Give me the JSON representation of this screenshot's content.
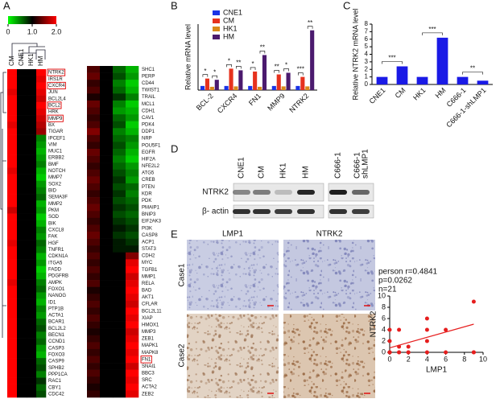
{
  "panel_labels": [
    "A",
    "B",
    "C",
    "D",
    "E"
  ],
  "chart_data": [
    {
      "type": "heatmap",
      "scale": {
        "lim": [
          0,
          2
        ],
        "ticks": [
          0,
          {
            "value": 1,
            "label": "1.0"
          },
          {
            "value": 2,
            "label": "2.0"
          }
        ]
      },
      "columns": [
        "CM",
        "CNE1",
        "HK1",
        "HM"
      ],
      "left_genes": [
        {
          "label": "NTRK2",
          "boxed": true
        },
        "IRS1R",
        {
          "label": "CXCR4",
          "boxed": true
        },
        "JUN",
        "BCL2L4",
        {
          "label": "BCL2",
          "boxed": true
        },
        "HRK",
        {
          "label": "MMP9",
          "boxed": true
        },
        "BX",
        "TIGAR",
        "IPCEF1",
        "VIM",
        "MUC1",
        "ERBB2",
        "BMF",
        "NOTCH",
        "MMP7",
        "SOX2",
        "BID",
        "SEMA3F",
        "MMP2",
        "PKM",
        "SOD",
        "BIK",
        "CXCL8",
        "FAK",
        "HGF",
        "TNFR1",
        "CDKN1A",
        "ITGA5",
        "FADD",
        "PDGFRB",
        "AMPK",
        "FOXO1",
        "NANOG",
        "ID1",
        "PTP1B",
        "ACTA1",
        "BCAR1",
        "BCL2L2",
        "BECN1",
        "CCND1",
        "CASP3",
        "FOXO3",
        "CASP9",
        "SPHB2",
        "PPP1CA",
        "RAC1",
        "CBY1",
        "CDC42"
      ],
      "left_values": [
        [
          2,
          1,
          1,
          2
        ],
        [
          2,
          1,
          1,
          1.9
        ],
        [
          2,
          1,
          1,
          2
        ],
        [
          1.9,
          1,
          1,
          1.9
        ],
        [
          2,
          1,
          1,
          1.8
        ],
        [
          2,
          1,
          1,
          2
        ],
        [
          2,
          1,
          1,
          1.9
        ],
        [
          2,
          1,
          1,
          1.8
        ],
        [
          1.9,
          1,
          1,
          1.7
        ],
        [
          2,
          1,
          1,
          1.6
        ],
        [
          2,
          1,
          1,
          0.5
        ],
        [
          2,
          1,
          1,
          0.4
        ],
        [
          2,
          1,
          1,
          0.3
        ],
        [
          2,
          1,
          1,
          0.4
        ],
        [
          2,
          1,
          1,
          0.5
        ],
        [
          1.9,
          1,
          1,
          0.3
        ],
        [
          2,
          1,
          1,
          0.2
        ],
        [
          2,
          1,
          1,
          0.4
        ],
        [
          2,
          1,
          1,
          0.5
        ],
        [
          2,
          1,
          1,
          0.6
        ],
        [
          2,
          1,
          1,
          0.3
        ],
        [
          1.8,
          1,
          1,
          0.4
        ],
        [
          2,
          1,
          1,
          0.2
        ],
        [
          2,
          1,
          1,
          0.3
        ],
        [
          2,
          1,
          1,
          0.5
        ],
        [
          2,
          1,
          1,
          0.4
        ],
        [
          1.9,
          1,
          1,
          0.6
        ],
        [
          2,
          1,
          1,
          0.5
        ],
        [
          2,
          1,
          1,
          0.3
        ],
        [
          2,
          1,
          1,
          0.4
        ],
        [
          2,
          1,
          1,
          0.2
        ],
        [
          2,
          1,
          1,
          0.3
        ],
        [
          1.9,
          1,
          1,
          0.5
        ],
        [
          2,
          1,
          1,
          0.6
        ],
        [
          2,
          1,
          1,
          0.4
        ],
        [
          2,
          1,
          1,
          0.3
        ],
        [
          2,
          1,
          1,
          0.5
        ],
        [
          2,
          1,
          1,
          0.4
        ],
        [
          2,
          1,
          1,
          0.6
        ],
        [
          2,
          1,
          1,
          0.7
        ],
        [
          2,
          1,
          1,
          0.5
        ],
        [
          2,
          1,
          1,
          0.6
        ],
        [
          2,
          1,
          1,
          0.4
        ],
        [
          2,
          1,
          1,
          0.3
        ],
        [
          2,
          1,
          1,
          0.6
        ],
        [
          2,
          1,
          1,
          0.7
        ],
        [
          2,
          1,
          1,
          0.5
        ],
        [
          2,
          1,
          1,
          0.8
        ],
        [
          2,
          1,
          1,
          0.6
        ],
        [
          2,
          1,
          1,
          0.7
        ]
      ],
      "right_genes": [
        "SHC1",
        "PERP",
        "CD44",
        "TWIST1",
        "TRAIL",
        "MCL1",
        "CDH1",
        "CAV1",
        "PDK4",
        "DDP1",
        "NRP",
        "POU5F1",
        "EGFR",
        "HIF2A",
        "NFE2L2",
        "ATG5",
        "CREB",
        "PTEN",
        "KDR",
        "PDK",
        "PMAIP1",
        "BNIP3",
        "EIF2AK3",
        "PI3K",
        "CASP8",
        "ACP1",
        "STAT3",
        "CDH2",
        "MYC",
        "TGFB1",
        "MMP1",
        "RELA",
        "BAD",
        "AKT1",
        "CFLAR",
        "BCL2L11",
        "XIAP",
        "HMOX1",
        "MMP3",
        "ZEB1",
        "MAPK1",
        "MAPK8",
        {
          "label": "FN1",
          "boxed": true
        },
        "SNAI1",
        "BBC3",
        "SRC",
        "ACTA2",
        "ZEB2"
      ],
      "right_values": [
        [
          1.3,
          1,
          0.6,
          0.3
        ],
        [
          1.4,
          1,
          0.7,
          0.4
        ],
        [
          1.2,
          1,
          0.5,
          0.2
        ],
        [
          1.3,
          1,
          0.6,
          0.3
        ],
        [
          1.1,
          1,
          0.8,
          0.5
        ],
        [
          1.4,
          1,
          0.5,
          0.2
        ],
        [
          1.3,
          1,
          0.4,
          0.3
        ],
        [
          1.2,
          1,
          0.6,
          0.4
        ],
        [
          1.3,
          1,
          0.7,
          0.2
        ],
        [
          1.5,
          1,
          0.5,
          0.3
        ],
        [
          1.3,
          1,
          0.6,
          0.5
        ],
        [
          1.2,
          1,
          0.7,
          0.4
        ],
        [
          1.4,
          1,
          0.6,
          0.3
        ],
        [
          1.3,
          1,
          0.5,
          0.2
        ],
        [
          1.2,
          1,
          0.6,
          0.4
        ],
        [
          1.3,
          1,
          0.7,
          0.5
        ],
        [
          1.4,
          1,
          0.8,
          0.4
        ],
        [
          1.3,
          1,
          0.7,
          0.6
        ],
        [
          1.2,
          1,
          0.8,
          0.5
        ],
        [
          1.3,
          1,
          0.7,
          0.6
        ],
        [
          1.4,
          1,
          0.8,
          0.7
        ],
        [
          1.3,
          1,
          0.7,
          0.6
        ],
        [
          1.2,
          1,
          0.8,
          0.7
        ],
        [
          1.3,
          1,
          0.9,
          0.8
        ],
        [
          1.4,
          1,
          0.8,
          0.7
        ],
        [
          1.3,
          1,
          0.9,
          0.8
        ],
        [
          1.2,
          1,
          0.9,
          0.9
        ],
        [
          1.3,
          1,
          1,
          1.5
        ],
        [
          1.2,
          1,
          1,
          1.9
        ],
        [
          1.3,
          1,
          1,
          2
        ],
        [
          1.2,
          1,
          1,
          1.8
        ],
        [
          1.3,
          1,
          1,
          1.9
        ],
        [
          1.1,
          1,
          1,
          2
        ],
        [
          1.2,
          1,
          1,
          1.9
        ],
        [
          1.3,
          1,
          1,
          1.8
        ],
        [
          1.2,
          1,
          1,
          2
        ],
        [
          1.3,
          1,
          1,
          1.9
        ],
        [
          1.2,
          1,
          1,
          2
        ],
        [
          1.1,
          1,
          1,
          1.8
        ],
        [
          1.2,
          1,
          1,
          1.9
        ],
        [
          1.3,
          1,
          1,
          2
        ],
        [
          1.2,
          1,
          1,
          1.9
        ],
        [
          1.3,
          1,
          1,
          2
        ],
        [
          1.2,
          1,
          1,
          1.8
        ],
        [
          1.3,
          1,
          1,
          2
        ],
        [
          1.2,
          1,
          1,
          1.9
        ],
        [
          1.1,
          1,
          1,
          2
        ],
        [
          1.2,
          1,
          1,
          1.9
        ]
      ]
    },
    {
      "type": "bar",
      "y_label": "Relative mRNA level",
      "categories": [
        "BCL-2",
        "CXCR4",
        "FN1",
        "MMP9",
        "NTRK2"
      ],
      "series": [
        {
          "name": "CNE1",
          "color": "#1a33e6",
          "values": [
            1,
            1,
            1,
            1,
            1
          ]
        },
        {
          "name": "CM",
          "color": "#e6321e",
          "values": [
            2.8,
            5.2,
            4.5,
            3.8,
            3.2
          ]
        },
        {
          "name": "HK1",
          "color": "#d9891a",
          "values": [
            0.8,
            0.9,
            0.8,
            0.9,
            0.9
          ]
        },
        {
          "name": "HM",
          "color": "#4b1a6e",
          "values": [
            2.5,
            4.8,
            8.5,
            4.2,
            14.5
          ]
        }
      ],
      "significance": [
        [
          "*",
          "*"
        ],
        [
          "*",
          "**"
        ],
        [
          "*",
          "**"
        ],
        [
          "**",
          "*"
        ],
        [
          "***",
          "**"
        ]
      ],
      "ylim": [
        0,
        16
      ]
    },
    {
      "type": "bar",
      "y_label": "Relative NTRK2 mRNA level",
      "categories": [
        "CNE1",
        "CM",
        "HK1",
        "HM",
        "C666-1",
        "C666-1-shLMP1"
      ],
      "values": [
        1,
        2.4,
        1,
        6.2,
        1,
        0.5
      ],
      "color": "#1a1ae6",
      "significance": [
        "***",
        "***",
        "**"
      ],
      "ylim": [
        0,
        8
      ],
      "yticks": [
        0,
        1,
        2,
        3,
        4,
        5,
        6,
        7,
        8
      ]
    },
    {
      "type": "scatter",
      "x_label": "LMP1",
      "y_label": "NTRK2",
      "annotations": [
        "person r=0.4841",
        "p=0.0262",
        "n=21"
      ],
      "x": [
        0,
        0,
        0,
        0,
        1,
        1,
        1,
        2,
        2,
        4,
        4,
        4,
        4,
        6,
        6,
        9,
        9,
        0,
        1,
        2,
        9
      ],
      "values": [
        0,
        2,
        4,
        0,
        4,
        1,
        0,
        1,
        0,
        4,
        6,
        2,
        0,
        0,
        4,
        9,
        0,
        0,
        0,
        0,
        0
      ],
      "color": "#e61e1e",
      "fit": {
        "x": [
          0,
          9
        ],
        "values": [
          0.8,
          5
        ],
        "color": "#e61e1e"
      },
      "xlim": [
        0,
        10
      ],
      "ylim": [
        0,
        10
      ],
      "xticks": [
        0,
        2,
        4,
        6,
        8,
        10
      ],
      "yticks": [
        0,
        2,
        4,
        6,
        8,
        10
      ]
    }
  ],
  "blot": {
    "lanes": [
      "CNE1",
      "CM",
      "HK1",
      "HM",
      "C666-1",
      [
        "C666-1",
        "shLMP1"
      ]
    ],
    "rows": [
      "NTRK2",
      "β- actin"
    ]
  },
  "ihc": {
    "columns": [
      "LMP1",
      "NTRK2"
    ],
    "rows": [
      "Case1",
      "Case2"
    ]
  }
}
